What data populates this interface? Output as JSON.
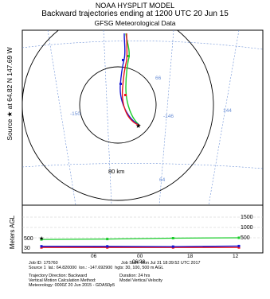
{
  "header": {
    "model": "NOAA HYSPLIT MODEL",
    "title": "Backward trajectories ending at 1200 UTC 20 Jun 15",
    "subtitle": "GFSG Meteorological Data"
  },
  "map": {
    "source_label": "Source ★ at 64.82 N 147.69 W",
    "lon_labels": [
      "-150",
      "-146",
      "144"
    ],
    "lat_labels": [
      "66",
      "64"
    ],
    "range_label": "80 km"
  },
  "profile": {
    "axis_title": "Meters AGL",
    "y_ticks_right": [
      "1500",
      "1000",
      "500"
    ],
    "y_ticks_left": [
      "500",
      "30"
    ],
    "x_ticks": [
      "06",
      "00",
      "18",
      "12"
    ],
    "date_label": "06/20"
  },
  "footer": {
    "job_id": "Job ID: 175760",
    "job_start": "Job Start: Mon Jul 31 18:39:52 UTC 2017",
    "source_line": "Source 1  lat.: 64.820000  lon.: -147.692900  hgts: 30, 100, 500 m AGL",
    "direction": "Trajectory Direction: Backward",
    "duration": "Duration: 24 hrs",
    "vertical": "Vertical Motion Calculation Method:",
    "vertical_value": "Model Vertical Velocity",
    "meteorology": "Meteorology: 0000Z 20 Jun 2015 - GDAS0p5"
  },
  "colors": {
    "red": "#e8141b",
    "blue": "#1414d4",
    "green": "#19cc2a",
    "grid": "#6a8fd6",
    "frame": "#000000"
  },
  "chart_data": {
    "type": "line",
    "xlabel": "",
    "ylabel": "Meters AGL",
    "x": [
      "06",
      "00",
      "18",
      "12"
    ],
    "ylim": [
      0,
      1500
    ],
    "series": [
      {
        "color": "#e8141b",
        "values": [
          30,
          30,
          30,
          30
        ]
      },
      {
        "color": "#1414d4",
        "values": [
          90,
          85,
          75,
          100
        ]
      },
      {
        "color": "#19cc2a",
        "values": [
          420,
          440,
          480,
          500
        ]
      }
    ]
  }
}
